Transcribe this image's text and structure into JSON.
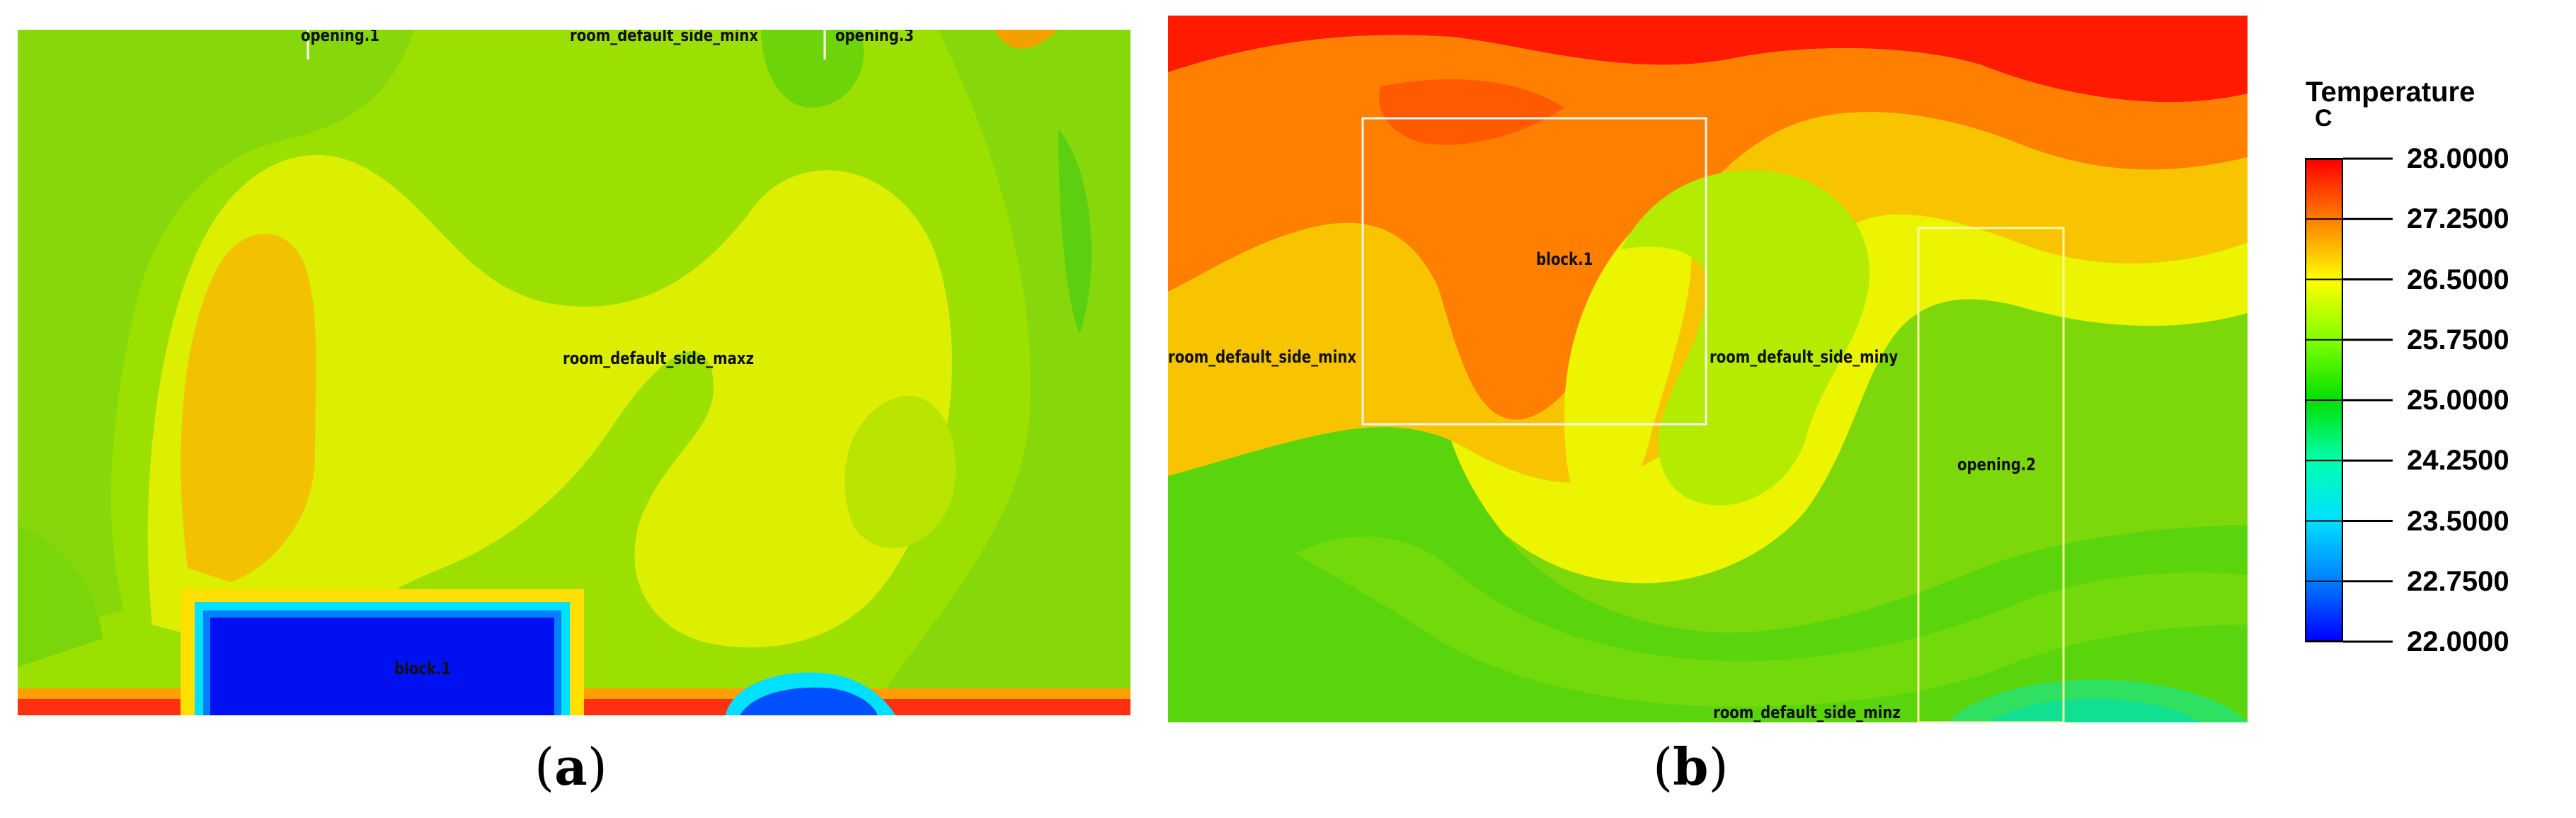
{
  "figure": {
    "captions": [
      "a",
      "b"
    ]
  },
  "panel_a": {
    "labels": {
      "opening_1": "opening.1",
      "center_top": "room_default_side_minx",
      "opening_3": "opening.3",
      "room_side": "room_default_side_maxz",
      "block": "block.1"
    }
  },
  "panel_b": {
    "labels": {
      "block": "block.1",
      "side_minx": "room_default_side_minx",
      "side_miny": "room_default_side_miny",
      "opening": "opening.2",
      "side_minz": "room_default_side_minz"
    }
  },
  "legend": {
    "title": "Temperature",
    "unit": "C",
    "min": 22.0,
    "max": 28.0,
    "ticks": [
      "28.0000",
      "27.2500",
      "26.5000",
      "25.7500",
      "25.0000",
      "24.2500",
      "23.5000",
      "22.7500",
      "22.0000"
    ],
    "colors": [
      "#ff0000",
      "#ff8000",
      "#ffff00",
      "#80ff00",
      "#00e000",
      "#00ffb0",
      "#00e0ff",
      "#0080ff",
      "#0000ff"
    ]
  }
}
